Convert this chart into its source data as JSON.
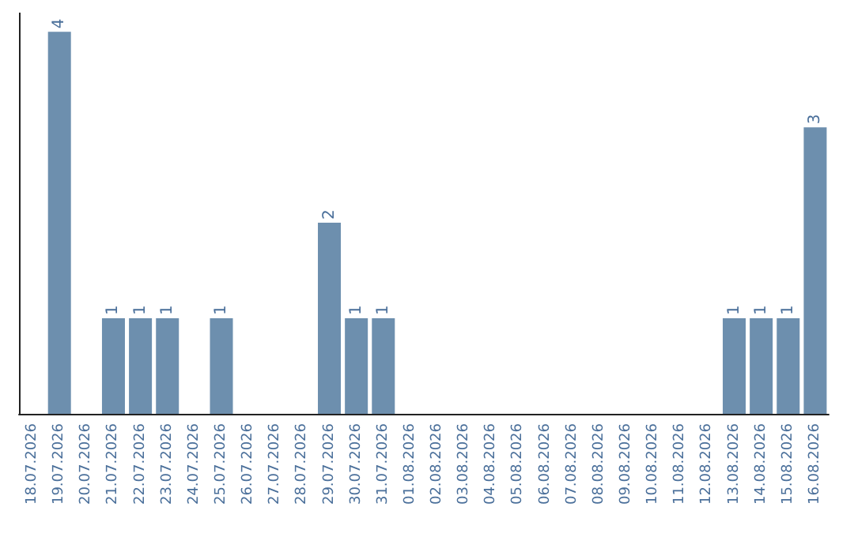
{
  "chart_data": {
    "type": "bar",
    "categories": [
      "18.07.2026",
      "19.07.2026",
      "20.07.2026",
      "21.07.2026",
      "22.07.2026",
      "23.07.2026",
      "24.07.2026",
      "25.07.2026",
      "26.07.2026",
      "27.07.2026",
      "28.07.2026",
      "29.07.2026",
      "30.07.2026",
      "31.07.2026",
      "01.08.2026",
      "02.08.2026",
      "03.08.2026",
      "04.08.2026",
      "05.08.2026",
      "06.08.2026",
      "07.08.2026",
      "08.08.2026",
      "09.08.2026",
      "10.08.2026",
      "11.08.2026",
      "12.08.2026",
      "13.08.2026",
      "14.08.2026",
      "15.08.2026",
      "16.08.2026"
    ],
    "values": [
      0,
      4,
      0,
      1,
      1,
      1,
      0,
      1,
      0,
      0,
      0,
      2,
      1,
      1,
      0,
      0,
      0,
      0,
      0,
      0,
      0,
      0,
      0,
      0,
      0,
      0,
      1,
      1,
      1,
      3
    ],
    "value_labels": [
      null,
      "4",
      null,
      "1",
      "1",
      "1",
      null,
      "1",
      null,
      null,
      null,
      "2",
      "1",
      "1",
      null,
      null,
      null,
      null,
      null,
      null,
      null,
      null,
      null,
      null,
      null,
      null,
      "1",
      "1",
      "1",
      "3"
    ],
    "color": "#6d8fae",
    "ylim": [
      0,
      4.2
    ],
    "tick_labels": "x",
    "grid": false
  }
}
